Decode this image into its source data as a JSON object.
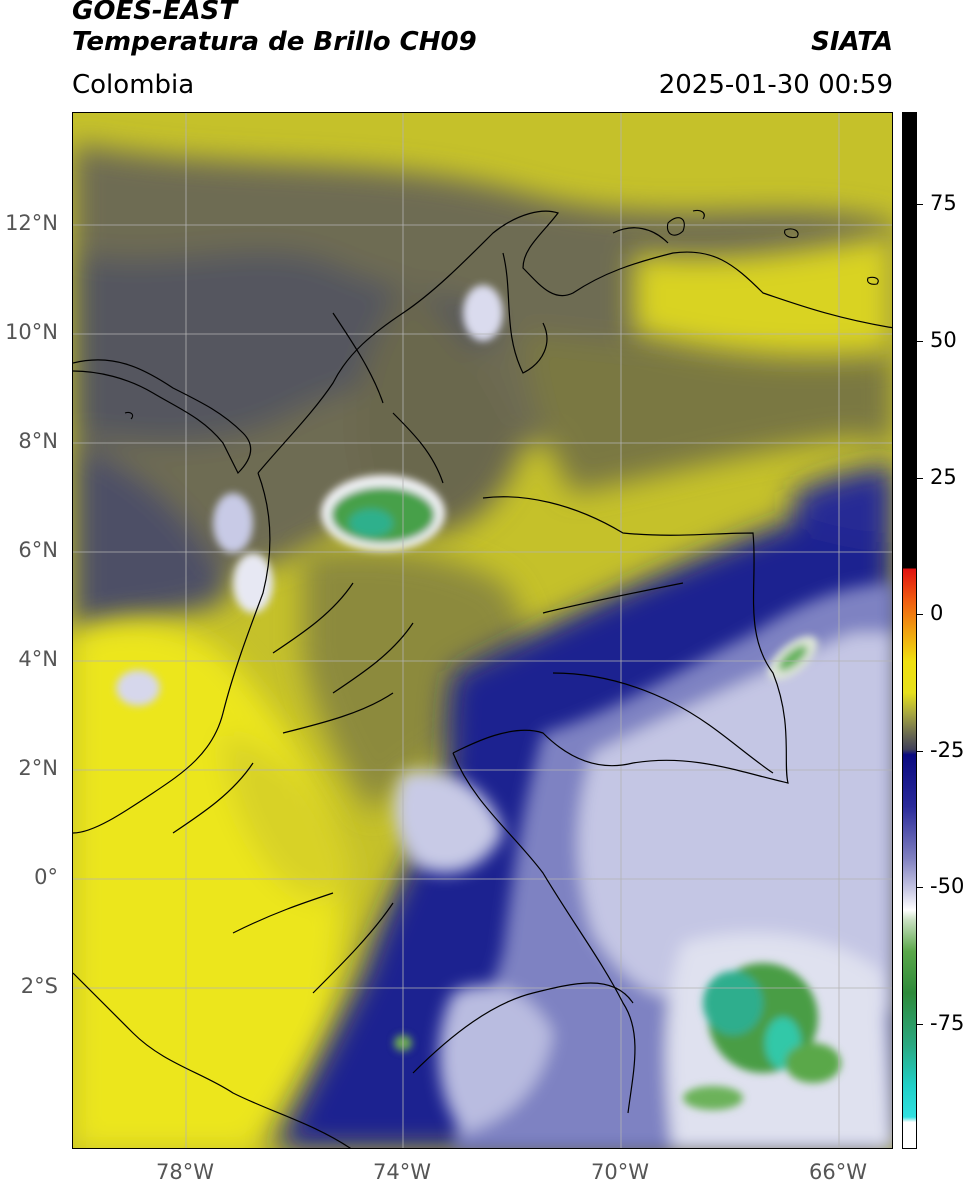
{
  "header": {
    "title_line1": "GOES-EAST",
    "title_line2": "Temperatura de Brillo CH09",
    "organization": "SIATA",
    "region": "Colombia",
    "timestamp": "2025-01-30 00:59"
  },
  "map": {
    "lat_ticks": [
      "12°N",
      "10°N",
      "8°N",
      "6°N",
      "4°N",
      "2°N",
      "0°",
      "2°S"
    ],
    "lon_ticks": [
      "78°W",
      "74°W",
      "70°W",
      "66°W"
    ],
    "colors": {
      "warm_yellow": "#e6e01c",
      "olive": "#8e8a38",
      "gray": "#5f6065",
      "navy": "#1d1f8c",
      "light_blue": "#c9cbe6",
      "white": "#f4f5f7",
      "green": "#3f9a3a",
      "teal": "#33c8a8",
      "border": "#000000",
      "grid": "#b3b3b3"
    }
  },
  "colorbar": {
    "ticks": [
      "75",
      "50",
      "25",
      "0",
      "-25",
      "-50",
      "-75"
    ],
    "units_hint": "brightness temperature scale"
  }
}
